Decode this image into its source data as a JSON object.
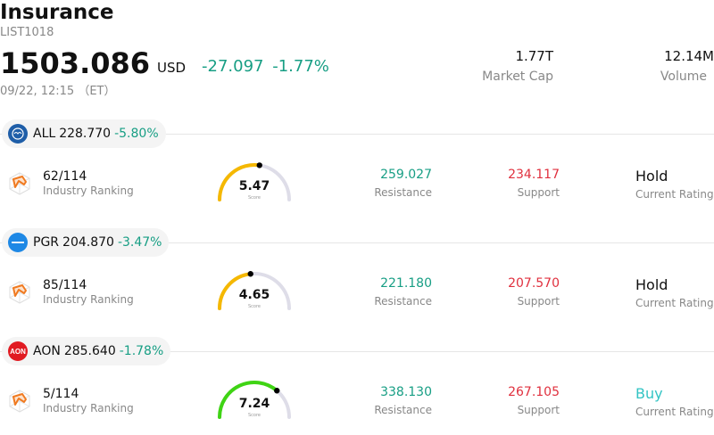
{
  "header": {
    "title": "Insurance",
    "code": "LIST1018",
    "price": "1503.086",
    "currency": "USD",
    "change": "-27.097",
    "change_pct": "-1.77%",
    "time": "09/22, 12:15 （ET）",
    "market_cap_value": "1.77T",
    "market_cap_label": "Market Cap",
    "volume_value": "12.14M",
    "volume_label": "Volume"
  },
  "stocks": [
    {
      "ticker": "ALL",
      "price": "228.770",
      "change_pct": "-5.80%",
      "logo_color": "#1f5ea8",
      "logo_icon": "allstate-hands-icon",
      "ranking": "62/114",
      "ranking_label": "Industry Ranking",
      "score": "5.47",
      "score_label": "Score",
      "score_fraction": 0.547,
      "gauge_color": "#f5b800",
      "resistance": "259.027",
      "resistance_label": "Resistance",
      "support": "234.117",
      "support_label": "Support",
      "rating": "Hold",
      "rating_label": "Current Rating",
      "rating_color": "#111111"
    },
    {
      "ticker": "PGR",
      "price": "204.870",
      "change_pct": "-3.47%",
      "logo_color": "#1e88e5",
      "logo_icon": "progressive-wordmark-icon",
      "ranking": "85/114",
      "ranking_label": "Industry Ranking",
      "score": "4.65",
      "score_label": "Score",
      "score_fraction": 0.465,
      "gauge_color": "#f5b800",
      "resistance": "221.180",
      "resistance_label": "Resistance",
      "support": "207.570",
      "support_label": "Support",
      "rating": "Hold",
      "rating_label": "Current Rating",
      "rating_color": "#111111"
    },
    {
      "ticker": "AON",
      "price": "285.640",
      "change_pct": "-1.78%",
      "logo_color": "#e11b22",
      "logo_icon": "aon-wordmark-icon",
      "ranking": "5/114",
      "ranking_label": "Industry Ranking",
      "score": "7.24",
      "score_label": "Score",
      "score_fraction": 0.724,
      "gauge_color": "#3fd414",
      "resistance": "338.130",
      "resistance_label": "Resistance",
      "support": "267.105",
      "support_label": "Support",
      "rating": "Buy",
      "rating_label": "Current Rating",
      "rating_color": "#33c4c4"
    }
  ]
}
